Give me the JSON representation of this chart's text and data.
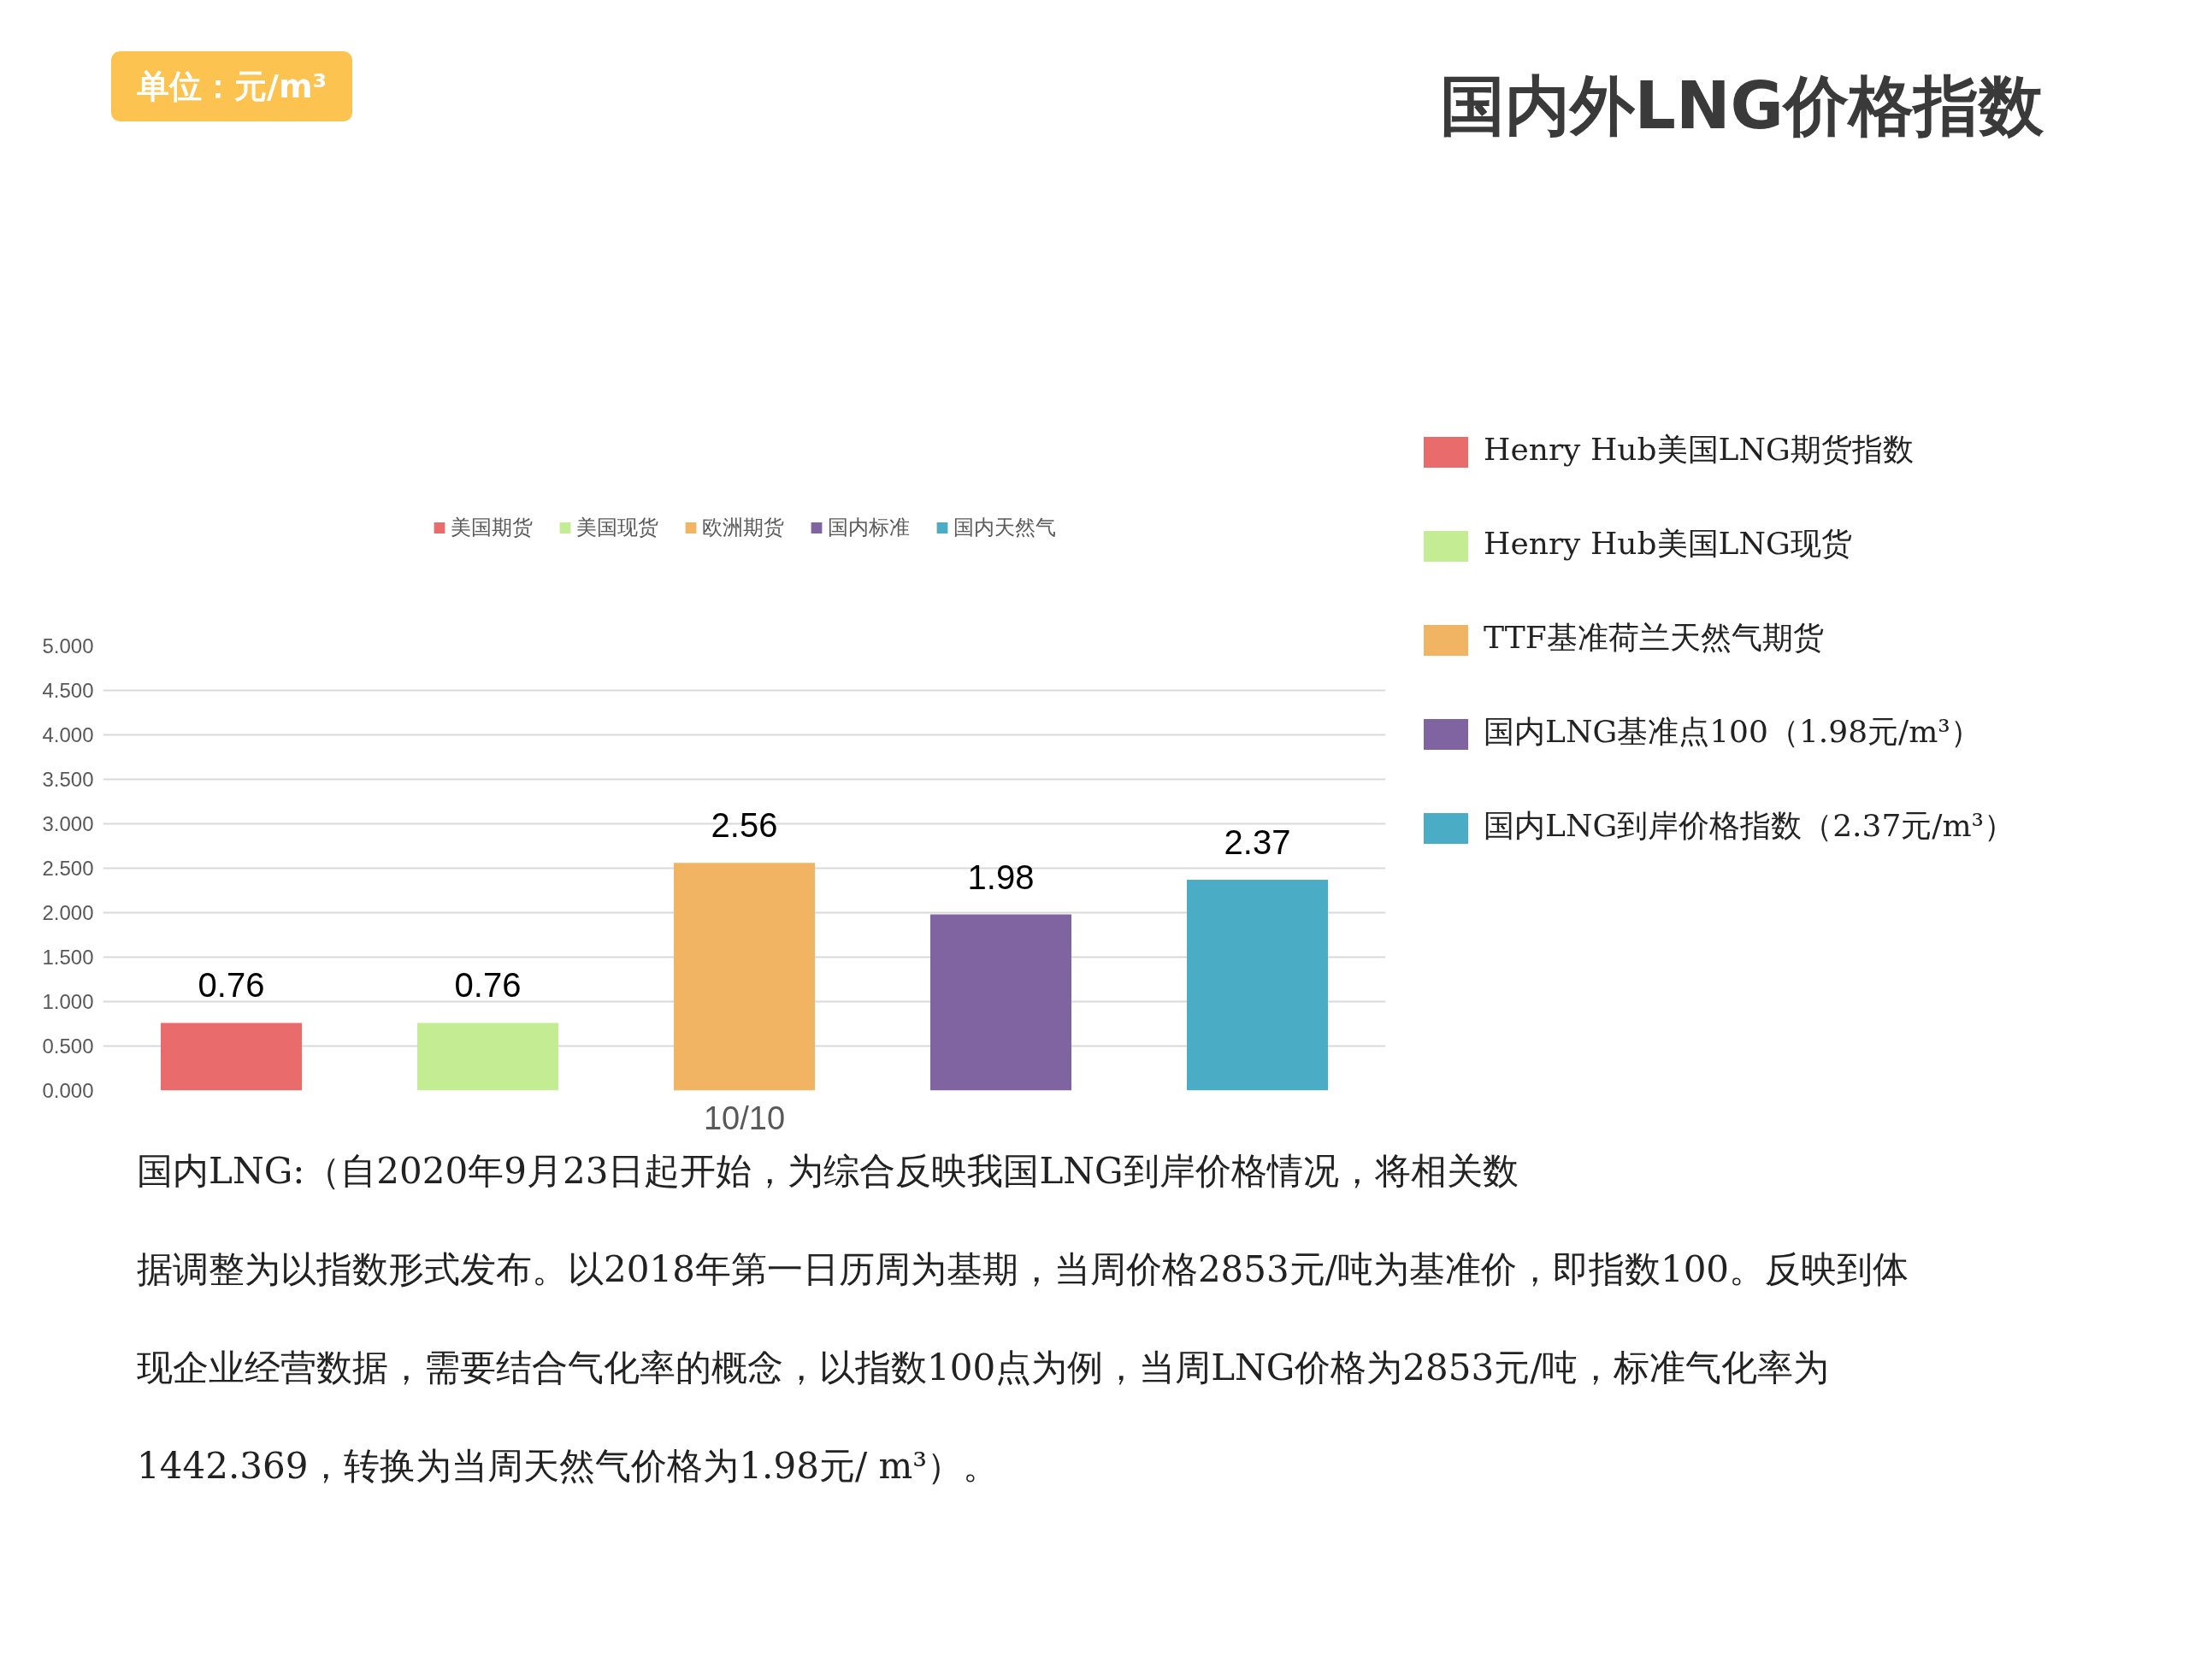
{
  "chart_data": {
    "type": "bar",
    "title": "国内外LNG价格指数",
    "categories": [
      "10/10"
    ],
    "series": [
      {
        "name": "美国期货",
        "color": "#e96b6b",
        "values": [
          0.76
        ]
      },
      {
        "name": "美国现货",
        "color": "#c4ec93",
        "values": [
          0.76
        ]
      },
      {
        "name": "欧洲期货",
        "color": "#f0b462",
        "values": [
          2.56
        ]
      },
      {
        "name": "国内标准",
        "color": "#8064a2",
        "values": [
          1.98
        ]
      },
      {
        "name": "国内天然气",
        "color": "#4bacc6",
        "values": [
          2.37
        ]
      }
    ],
    "ylim": [
      0,
      5
    ],
    "yticks": [
      {
        "value": 0,
        "label": "0.000"
      },
      {
        "value": 0.5,
        "label": "0.500"
      },
      {
        "value": 1,
        "label": "1.000"
      },
      {
        "value": 1.5,
        "label": "1.500"
      },
      {
        "value": 2,
        "label": "2.000"
      },
      {
        "value": 2.5,
        "label": "2.500"
      },
      {
        "value": 3,
        "label": "3.000"
      },
      {
        "value": 3.5,
        "label": "3.500"
      },
      {
        "value": 4,
        "label": "4.000"
      },
      {
        "value": 4.5,
        "label": "4.500"
      },
      {
        "value": 5,
        "label": "5.000"
      }
    ],
    "grid": "y",
    "legend": "top",
    "data_labels": true,
    "annotations": [
      "单位：元/m³",
      "Henry Hub美国LNG期货指数",
      "Henry Hub美国LNG现货",
      "TTF基准荷兰天然气期货",
      "国内LNG基准点100（1.98元/m³）",
      "国内LNG到岸价格指数（2.37元/m³）",
      "国内LNG:（自2020年9月23日起开始，为综合反映我国LNG到岸价格情况，将相关数",
      "据调整为以指数形式发布。以2018年第一日历周为基期，当周价格2853元/吨为基准价，即指数100。反映到体",
      "现企业经营数据，需要结合气化率的概念，以指数100点为例，当周LNG价格为2853元/吨，标准气化率为",
      "1442.369，转换为当周天然气价格为1.98元/ m³）。"
    ]
  }
}
